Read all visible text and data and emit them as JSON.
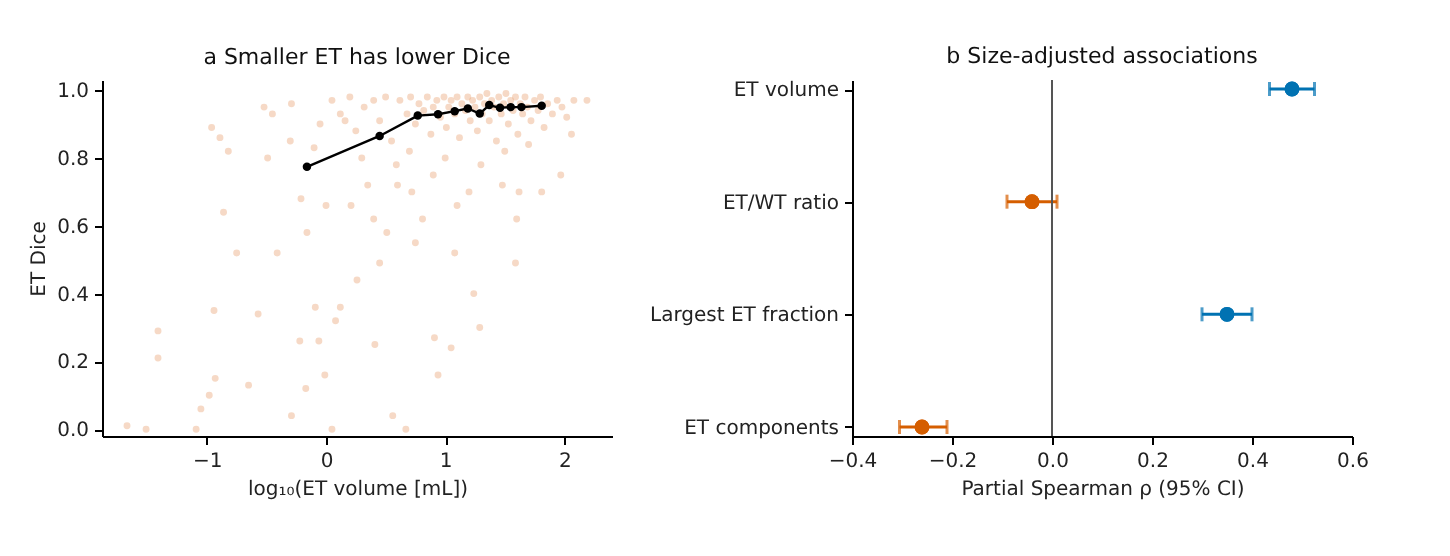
{
  "chart_data": [
    {
      "type": "scatter",
      "title": "a  Smaller ET has lower Dice",
      "xlabel": "log₁₀(ET volume [mL])",
      "ylabel": "ET Dice",
      "xlim": [
        -1.88,
        2.4
      ],
      "ylim": [
        -0.02,
        1.03
      ],
      "xticks": [
        {
          "value": -1,
          "label": "−1"
        },
        0,
        1,
        2
      ],
      "yticks": [
        {
          "value": 0,
          "label": "0.0"
        },
        {
          "value": 0.2,
          "label": "0.2"
        },
        {
          "value": 0.4,
          "label": "0.4"
        },
        {
          "value": 0.6,
          "label": "0.6"
        },
        {
          "value": 0.8,
          "label": "0.8"
        },
        {
          "value": 1,
          "label": "1.0"
        }
      ],
      "grid": false,
      "legend": false,
      "series": [
        {
          "type": "scatter",
          "color": "#e8a070",
          "marker": "circle",
          "x": [
            -1.67,
            -1.51,
            -1.41,
            -1.41,
            -1.05,
            -1.09,
            -0.98,
            -0.94,
            -0.93,
            -0.96,
            -0.89,
            -0.86,
            -0.82,
            -0.75,
            -0.65,
            -0.57,
            -0.52,
            -0.49,
            -0.41,
            -0.29,
            -0.29,
            -0.22,
            -0.21,
            -0.16,
            -0.17,
            -0.1,
            -0.09,
            -0.06,
            -0.01,
            0.08,
            0.05,
            0.12,
            0.16,
            0.21,
            0.26,
            0.35,
            0.41,
            0.45,
            0.51,
            0.56,
            0.59,
            0.67,
            0.72,
            0.75,
            0.81,
            0.91,
            0.94,
            1.05,
            1.08,
            1.24,
            1.29,
            1.48,
            1.59,
            1.62,
            1.81,
            1.97,
            2.06,
            2.19,
            0.62,
            0.68,
            0.71,
            0.75,
            0.78,
            0.82,
            0.85,
            0.88,
            0.9,
            0.93,
            0.96,
            0.99,
            1.01,
            1.03,
            1.05,
            1.08,
            1.1,
            1.12,
            1.14,
            1.17,
            1.19,
            1.21,
            1.23,
            1.25,
            1.27,
            1.29,
            1.31,
            1.33,
            1.35,
            1.37,
            1.39,
            1.41,
            1.43,
            1.45,
            1.47,
            1.49,
            1.51,
            1.53,
            1.55,
            1.57,
            1.59,
            1.61,
            1.63,
            1.65,
            1.67,
            1.69,
            1.72,
            1.75,
            1.78,
            1.8,
            1.83,
            1.86,
            1.9,
            1.94,
            1.98,
            2.02,
            2.08,
            0.05,
            0.12,
            0.2,
            0.25,
            0.32,
            0.4,
            0.45,
            0.5,
            0.55,
            -0.3,
            -0.05,
            -0.45,
            0.3,
            0.7,
            1.0,
            1.3,
            1.5,
            1.7,
            0.9,
            1.2,
            0.6,
            0.0,
            0.4,
            1.6,
            1.1
          ],
          "values": [
            0.01,
            0,
            0.29,
            0.21,
            0.06,
            0,
            0.1,
            0.35,
            0.15,
            0.89,
            0.86,
            0.64,
            0.82,
            0.52,
            0.13,
            0.34,
            0.95,
            0.8,
            0.52,
            0.96,
            0.04,
            0.26,
            0.68,
            0.58,
            0.12,
            0.83,
            0.36,
            0.26,
            0.16,
            0.32,
            0,
            0.36,
            0.91,
            0.66,
            0.44,
            0.72,
            0.25,
            0.49,
            0.58,
            0.04,
            0.78,
            0,
            0.7,
            0.55,
            0.62,
            0.27,
            0.16,
            0.24,
            0.52,
            0.4,
            0.3,
            0.72,
            0.49,
            0.7,
            0.7,
            0.75,
            0.87,
            0.97,
            0.97,
            0.93,
            0.98,
            0.9,
            0.96,
            0.94,
            0.98,
            0.87,
            0.95,
            0.97,
            0.92,
            0.98,
            0.89,
            0.95,
            0.97,
            0.93,
            0.98,
            0.86,
            0.96,
            0.94,
            0.98,
            0.91,
            0.97,
            0.95,
            0.88,
            0.98,
            0.93,
            0.96,
            0.99,
            0.91,
            0.97,
            0.95,
            0.85,
            0.98,
            0.93,
            0.96,
            0.99,
            0.9,
            0.97,
            0.94,
            0.98,
            0.87,
            0.96,
            0.93,
            0.98,
            0.95,
            0.91,
            0.97,
            0.94,
            0.98,
            0.89,
            0.96,
            0.93,
            0.97,
            0.95,
            0.92,
            0.97,
            0.97,
            0.93,
            0.98,
            0.88,
            0.95,
            0.97,
            0.91,
            0.98,
            0.85,
            0.85,
            0.9,
            0.93,
            0.8,
            0.82,
            0.8,
            0.78,
            0.82,
            0.84,
            0.75,
            0.7,
            0.72,
            0.66,
            0.62,
            0.62,
            0.66
          ]
        },
        {
          "type": "line",
          "color": "#000000",
          "marker": "circle",
          "x": [
            -0.16,
            0.45,
            0.77,
            0.94,
            1.08,
            1.19,
            1.29,
            1.37,
            1.46,
            1.55,
            1.64,
            1.81
          ],
          "values": [
            0.774,
            0.865,
            0.925,
            0.929,
            0.938,
            0.946,
            0.931,
            0.956,
            0.948,
            0.95,
            0.95,
            0.954
          ]
        }
      ]
    },
    {
      "type": "scatter",
      "orientation": "horizontal",
      "title": "b  Size-adjusted associations",
      "xlabel": "Partial Spearman ρ (95% CI)",
      "marker": "circle",
      "grid": false,
      "legend": false,
      "categories": [
        "ET volume",
        "ET/WT ratio",
        "Largest ET fraction",
        "ET components"
      ],
      "values": [
        0.48,
        -0.04,
        0.35,
        -0.26
      ],
      "errors": [
        [
          0.435,
          0.525
        ],
        [
          -0.09,
          0.01
        ],
        [
          0.3,
          0.4
        ],
        [
          -0.305,
          -0.21
        ]
      ],
      "colors": [
        "#0072b2",
        "#d55e00",
        "#0072b2",
        "#d55e00"
      ],
      "xlim": [
        -0.4,
        0.6
      ],
      "xticks": [
        {
          "value": -0.4,
          "label": "−0.4"
        },
        {
          "value": -0.2,
          "label": "−0.2"
        },
        {
          "value": 0,
          "label": "0.0"
        },
        {
          "value": 0.2,
          "label": "0.2"
        },
        {
          "value": 0.4,
          "label": "0.4"
        },
        {
          "value": 0.6,
          "label": "0.6"
        }
      ],
      "ref_lines": [
        {
          "axis": "x",
          "value": 0,
          "color": "#555555",
          "line_style": "solid"
        }
      ]
    }
  ]
}
